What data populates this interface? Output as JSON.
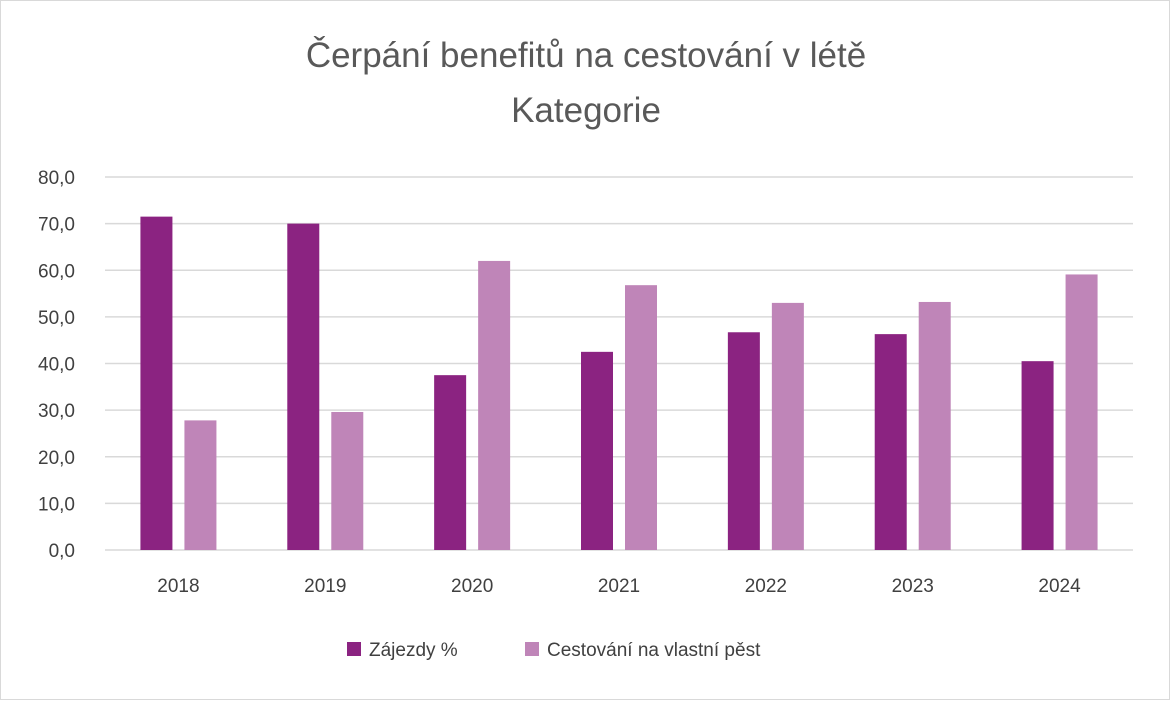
{
  "chart_data": {
    "type": "bar",
    "title": "Čerpání benefitů na cestování v létě",
    "subtitle": "Kategorie",
    "categories": [
      "2018",
      "2019",
      "2020",
      "2021",
      "2022",
      "2023",
      "2024"
    ],
    "series": [
      {
        "name": "Zájezdy %",
        "color": "#8b2381",
        "values": [
          71.5,
          70.0,
          37.5,
          42.5,
          46.7,
          46.3,
          40.5
        ]
      },
      {
        "name": "Cestování na vlastní pěst",
        "color": "#bf85b8",
        "values": [
          27.8,
          29.6,
          62.0,
          56.8,
          53.0,
          53.2,
          59.1
        ]
      }
    ],
    "y_ticks": [
      "0,0",
      "10,0",
      "20,0",
      "30,0",
      "40,0",
      "50,0",
      "60,0",
      "70,0",
      "80,0"
    ],
    "ylim": [
      0,
      80
    ],
    "grid": true,
    "gridline_color": "#d9d9d9",
    "legend_position": "bottom"
  }
}
